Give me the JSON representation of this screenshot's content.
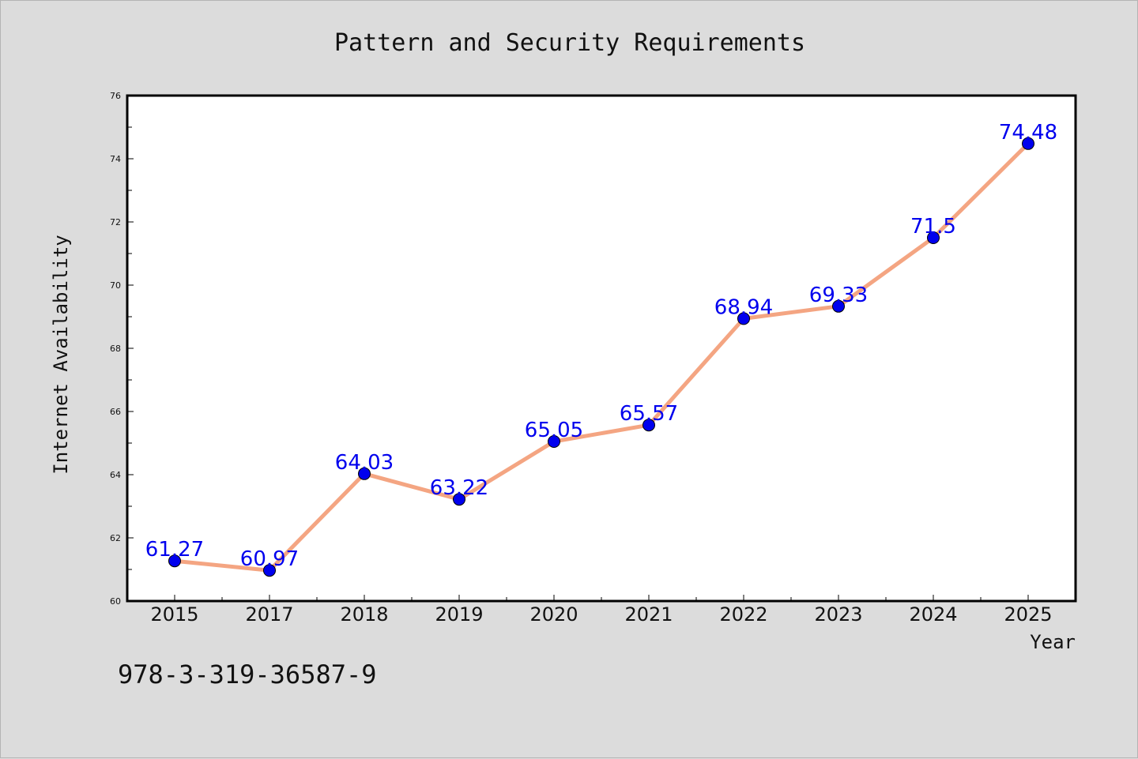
{
  "figure": {
    "background_color": "#dcdcdc",
    "footer_text": "978-3-319-36587-9"
  },
  "chart_data": {
    "type": "line",
    "title": "Pattern and Security Requirements",
    "xlabel": "Year",
    "ylabel": "Internet Availability",
    "categories": [
      "2015",
      "2017",
      "2018",
      "2019",
      "2020",
      "2021",
      "2022",
      "2023",
      "2024",
      "2025"
    ],
    "series": [
      {
        "values": [
          61.27,
          60.97,
          64.03,
          63.22,
          65.05,
          65.57,
          68.94,
          69.33,
          71.5,
          74.48
        ],
        "labels": [
          "61.27",
          "60.97",
          "64.03",
          "63.22",
          "65.05",
          "65.57",
          "68.94",
          "69.33",
          "71.5",
          "74.48"
        ],
        "line_color": "#f4a582",
        "marker_color": "#0000ee",
        "label_color": "#0000ee"
      }
    ],
    "ylim": [
      60,
      76
    ],
    "yticks": [
      "60",
      "62",
      "64",
      "66",
      "68",
      "70",
      "72",
      "74",
      "76"
    ],
    "grid": false,
    "legend": "none"
  }
}
